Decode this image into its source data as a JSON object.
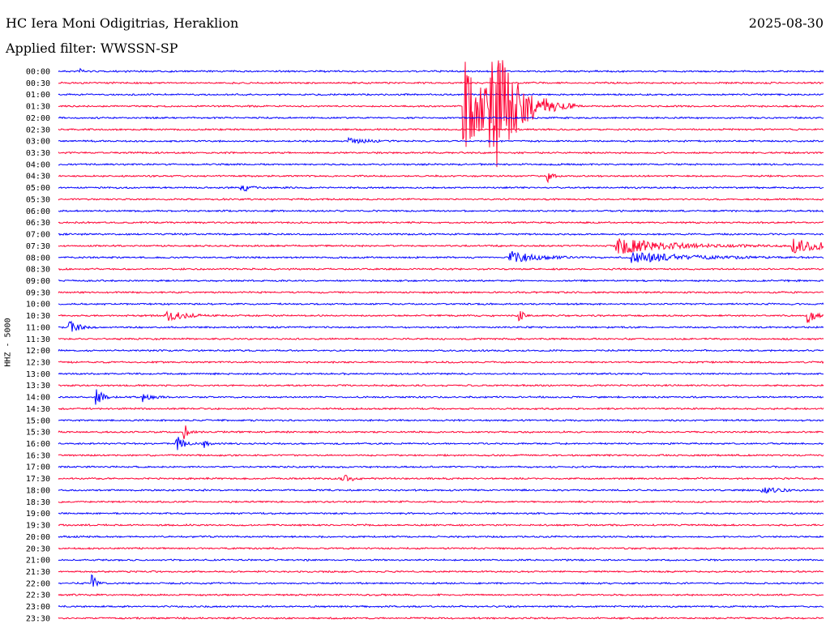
{
  "header": {
    "station": "HC Iera Moni Odigitrias, Heraklion",
    "date": "2025-08-30",
    "filter": "Applied filter: WWSSN-SP"
  },
  "chart_data": {
    "type": "line",
    "ylabel": "HHZ - 5000",
    "colors": [
      "#0000ff",
      "#ff0033"
    ],
    "times": [
      "00:00",
      "00:30",
      "01:00",
      "01:30",
      "02:00",
      "02:30",
      "03:00",
      "03:30",
      "04:00",
      "04:30",
      "05:00",
      "05:30",
      "06:00",
      "06:30",
      "07:00",
      "07:30",
      "08:00",
      "08:30",
      "09:00",
      "09:30",
      "10:00",
      "10:30",
      "11:00",
      "11:30",
      "12:00",
      "12:30",
      "13:00",
      "13:30",
      "14:00",
      "14:30",
      "15:00",
      "15:30",
      "16:00",
      "16:30",
      "17:00",
      "17:30",
      "18:00",
      "18:30",
      "19:00",
      "19:30",
      "20:00",
      "20:30",
      "21:00",
      "21:30",
      "22:00",
      "22:30",
      "23:00",
      "23:30"
    ],
    "events": [
      {
        "row": 0,
        "x": 0.03,
        "amp": 4,
        "dur": 0.004
      },
      {
        "row": 3,
        "x": 0.53,
        "amp": 60,
        "dur": 0.03
      },
      {
        "row": 3,
        "x": 0.565,
        "amp": 80,
        "dur": 0.03
      },
      {
        "row": 6,
        "x": 0.38,
        "amp": 4,
        "dur": 0.02
      },
      {
        "row": 9,
        "x": 0.64,
        "amp": 7,
        "dur": 0.006
      },
      {
        "row": 10,
        "x": 0.24,
        "amp": 5,
        "dur": 0.01
      },
      {
        "row": 15,
        "x": 0.73,
        "amp": 10,
        "dur": 0.06
      },
      {
        "row": 15,
        "x": 0.96,
        "amp": 8,
        "dur": 0.05
      },
      {
        "row": 16,
        "x": 0.59,
        "amp": 8,
        "dur": 0.03
      },
      {
        "row": 16,
        "x": 0.75,
        "amp": 6,
        "dur": 0.07
      },
      {
        "row": 21,
        "x": 0.14,
        "amp": 8,
        "dur": 0.02
      },
      {
        "row": 21,
        "x": 0.6,
        "amp": 10,
        "dur": 0.006
      },
      {
        "row": 21,
        "x": 0.98,
        "amp": 8,
        "dur": 0.01
      },
      {
        "row": 22,
        "x": 0.015,
        "amp": 8,
        "dur": 0.01
      },
      {
        "row": 28,
        "x": 0.05,
        "amp": 14,
        "dur": 0.006
      },
      {
        "row": 28,
        "x": 0.11,
        "amp": 6,
        "dur": 0.01
      },
      {
        "row": 31,
        "x": 0.165,
        "amp": 10,
        "dur": 0.004
      },
      {
        "row": 32,
        "x": 0.155,
        "amp": 9,
        "dur": 0.01
      },
      {
        "row": 32,
        "x": 0.19,
        "amp": 8,
        "dur": 0.003
      },
      {
        "row": 35,
        "x": 0.37,
        "amp": 7,
        "dur": 0.01
      },
      {
        "row": 36,
        "x": 0.92,
        "amp": 4,
        "dur": 0.02
      },
      {
        "row": 44,
        "x": 0.045,
        "amp": 12,
        "dur": 0.004
      }
    ]
  }
}
